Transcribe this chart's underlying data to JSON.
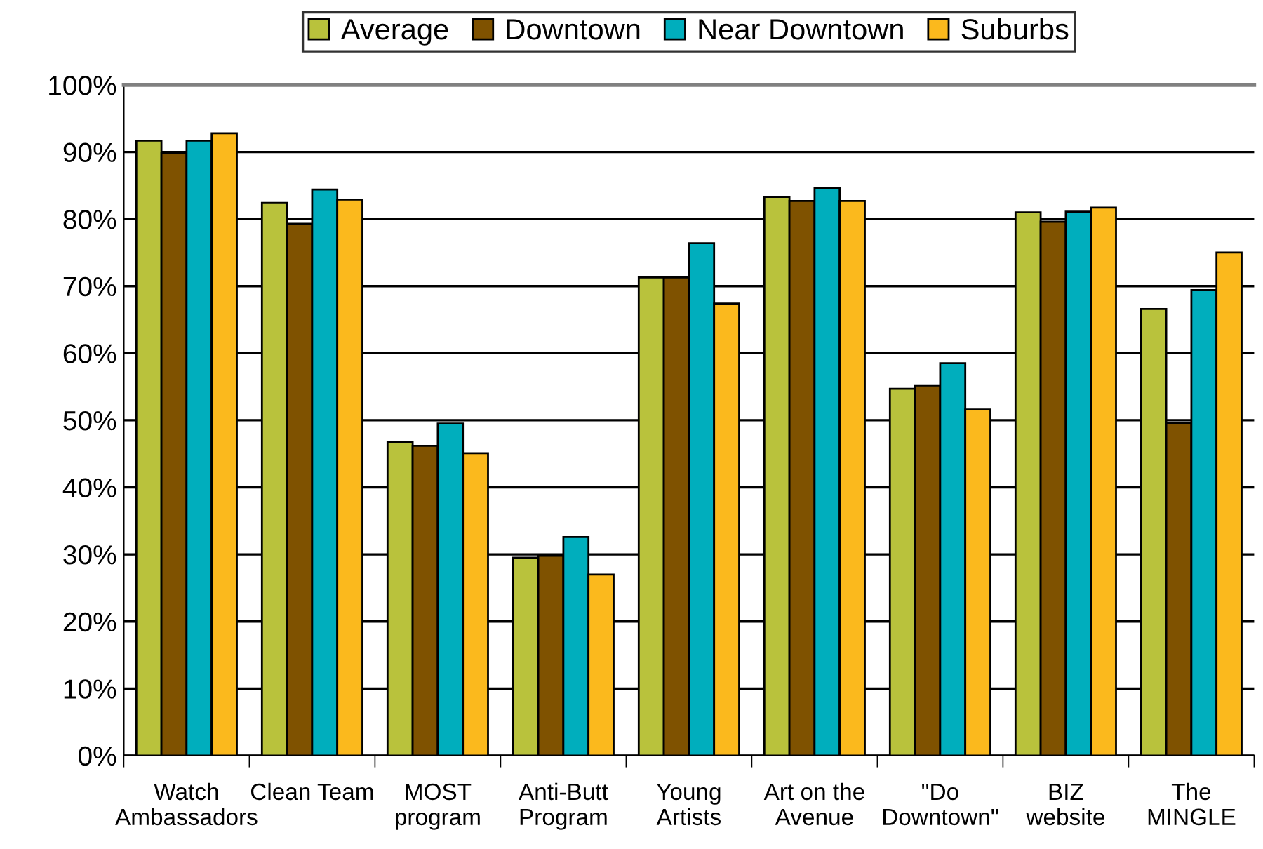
{
  "chart_data": {
    "type": "bar",
    "categories": [
      "Watch\nAmbassadors",
      "Clean Team",
      "MOST\nprogram",
      "Anti-Butt\nProgram",
      "Young\nArtists",
      "Art on the\nAvenue",
      "\"Do\nDowntown\"",
      "BIZ\nwebsite",
      "The\nMINGLE"
    ],
    "series": [
      {
        "name": "Average",
        "color": "#b9c23c",
        "values": [
          91.7,
          82.4,
          46.8,
          29.5,
          71.3,
          83.3,
          54.7,
          81.0,
          66.6
        ]
      },
      {
        "name": "Downtown",
        "color": "#7f5200",
        "values": [
          89.8,
          79.3,
          46.2,
          29.8,
          71.3,
          82.7,
          55.2,
          79.6,
          49.6
        ]
      },
      {
        "name": "Near Downtown",
        "color": "#00aebd",
        "values": [
          91.7,
          84.4,
          49.5,
          32.6,
          76.4,
          84.6,
          58.5,
          81.1,
          69.4
        ]
      },
      {
        "name": "Suburbs",
        "color": "#fbb91d",
        "values": [
          92.8,
          82.9,
          45.1,
          27.0,
          67.4,
          82.7,
          51.6,
          81.7,
          75.0
        ]
      }
    ],
    "ylim": [
      0,
      100
    ],
    "yticks": [
      {
        "value": 0,
        "label": "0%"
      },
      {
        "value": 10,
        "label": "10%"
      },
      {
        "value": 20,
        "label": "20%"
      },
      {
        "value": 30,
        "label": "30%"
      },
      {
        "value": 40,
        "label": "40%"
      },
      {
        "value": 50,
        "label": "50%"
      },
      {
        "value": 60,
        "label": "60%"
      },
      {
        "value": 70,
        "label": "70%"
      },
      {
        "value": 80,
        "label": "80%"
      },
      {
        "value": 90,
        "label": "90%"
      },
      {
        "value": 100,
        "label": "100%"
      }
    ],
    "grid": "y",
    "legend": "top"
  }
}
